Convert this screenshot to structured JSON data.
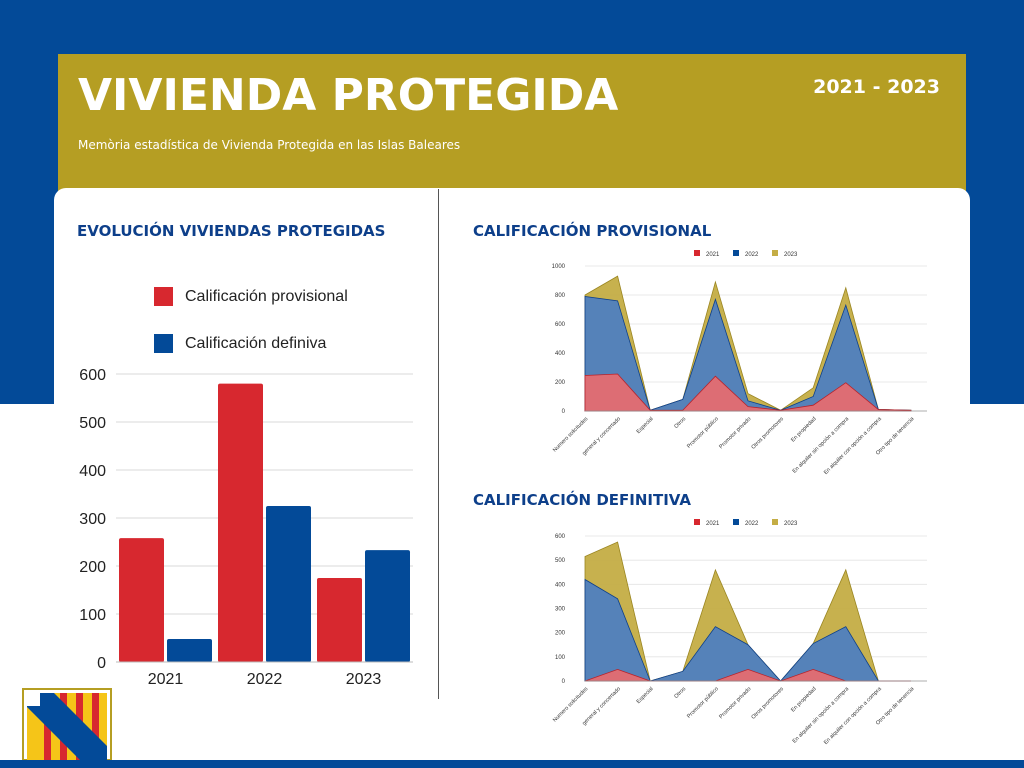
{
  "header": {
    "title": "VIVIENDA PROTEGIDA",
    "subtitle": "Memòria estadística de Vivienda Protegida en las Islas Baleares",
    "years": "2021 - 2023"
  },
  "colors": {
    "background_blue": "#034a98",
    "header_gold": "#b59e23",
    "red": "#d7282f",
    "blue": "#034a98",
    "gold": "#c4ad45",
    "title_blue": "#0d3f8a"
  },
  "logo": {
    "icon": "balearic-emblem-icon"
  },
  "chart_data": [
    {
      "type": "bar",
      "title": "EVOLUCIÓN VIVIENDAS PROTEGIDAS",
      "categories": [
        "2021",
        "2022",
        "2023"
      ],
      "series": [
        {
          "name": "Calificación provisional",
          "color": "#d7282f",
          "values": [
            258,
            580,
            175
          ]
        },
        {
          "name": "Calificación definiva",
          "color": "#034a98",
          "values": [
            48,
            325,
            233
          ]
        }
      ],
      "ylim": [
        0,
        600
      ],
      "yticks": [
        0,
        100,
        200,
        300,
        400,
        500,
        600
      ],
      "grid": true,
      "legend": "top"
    },
    {
      "type": "area",
      "title": "CALIFICACIÓN PROVISIONAL",
      "categories": [
        "Numero solicitudes",
        "general y concertado",
        "Especial",
        "Otros",
        "Promotor público",
        "Promotor privado",
        "Otros promotores",
        "En propiedad",
        "En alquiler sin opción a compra",
        "En alquiler con opción a compra",
        "Otro tipo de tenencia"
      ],
      "series": [
        {
          "name": "2021",
          "color": "#e56b70",
          "values": [
            245,
            255,
            5,
            5,
            240,
            30,
            5,
            40,
            195,
            10,
            5
          ]
        },
        {
          "name": "2022",
          "color": "#4f7fbf",
          "values": [
            790,
            760,
            5,
            80,
            770,
            70,
            5,
            100,
            730,
            10,
            5
          ]
        },
        {
          "name": "2023",
          "color": "#c4ad45",
          "values": [
            800,
            930,
            5,
            80,
            890,
            120,
            5,
            160,
            850,
            10,
            5
          ]
        }
      ],
      "ylim": [
        0,
        1000
      ],
      "yticks": [
        0,
        200,
        400,
        600,
        800,
        1000
      ],
      "grid": true,
      "legend": "top"
    },
    {
      "type": "area",
      "title": "CALIFICACIÓN DEFINITIVA",
      "categories": [
        "Numero solicitudes",
        "general y concertado",
        "Especial",
        "Otros",
        "Promotor público",
        "Promotor privado",
        "Otros promotores",
        "En propiedad",
        "En alquiler sin opción a compra",
        "En alquiler con opción a compra",
        "Otro tipo de tenencia"
      ],
      "series": [
        {
          "name": "2021",
          "color": "#e56b70",
          "values": [
            0,
            48,
            0,
            0,
            0,
            48,
            0,
            48,
            0,
            0,
            0
          ]
        },
        {
          "name": "2022",
          "color": "#4f7fbf",
          "values": [
            420,
            340,
            0,
            40,
            225,
            150,
            0,
            155,
            225,
            0,
            0
          ]
        },
        {
          "name": "2023",
          "color": "#c4ad45",
          "values": [
            515,
            575,
            0,
            40,
            460,
            150,
            0,
            155,
            460,
            0,
            0
          ]
        }
      ],
      "ylim": [
        0,
        600
      ],
      "yticks": [
        0,
        100,
        200,
        300,
        400,
        500,
        600
      ],
      "grid": true,
      "legend": "top"
    }
  ]
}
